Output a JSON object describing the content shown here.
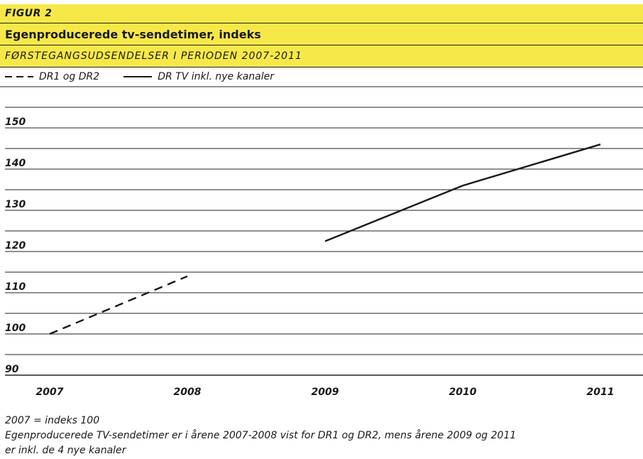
{
  "figure_label": "FIGUR 2",
  "title": "Egenproducerede tv-sendetimer, indeks",
  "subtitle": "FØRSTEGANGSUDSENDELSER I PERIODEN 2007-2011",
  "legend": [
    {
      "label": "DR1 og DR2",
      "style": "dashed"
    },
    {
      "label": "DR TV inkl. nye kanaler",
      "style": "solid"
    }
  ],
  "colors": {
    "band": "#f7e84a",
    "line": "#1a1a1a",
    "grid": "#222222"
  },
  "chart_data": {
    "type": "line",
    "title": "Egenproducerede tv-sendetimer, indeks",
    "subtitle": "FØRSTEGANGSUDSENDELSER I PERIODEN 2007-2011",
    "categories": [
      "2007",
      "2008",
      "2009",
      "2010",
      "2011"
    ],
    "y_ticks": [
      "90",
      "100",
      "110",
      "120",
      "130",
      "140",
      "150"
    ],
    "ylim": [
      90,
      150
    ],
    "grid": true,
    "legend_position": "top-left",
    "series": [
      {
        "name": "DR1 og DR2",
        "style": "dashed",
        "values": [
          100,
          114,
          null,
          null,
          null
        ]
      },
      {
        "name": "DR TV inkl. nye kanaler",
        "style": "solid",
        "values": [
          null,
          null,
          122.5,
          136,
          146
        ]
      }
    ]
  },
  "notes": [
    "2007 = indeks 100",
    "Egenproducerede TV-sendetimer er i årene 2007-2008 vist for DR1 og DR2, mens årene 2009 og 2011",
    "er inkl. de 4 nye kanaler"
  ]
}
